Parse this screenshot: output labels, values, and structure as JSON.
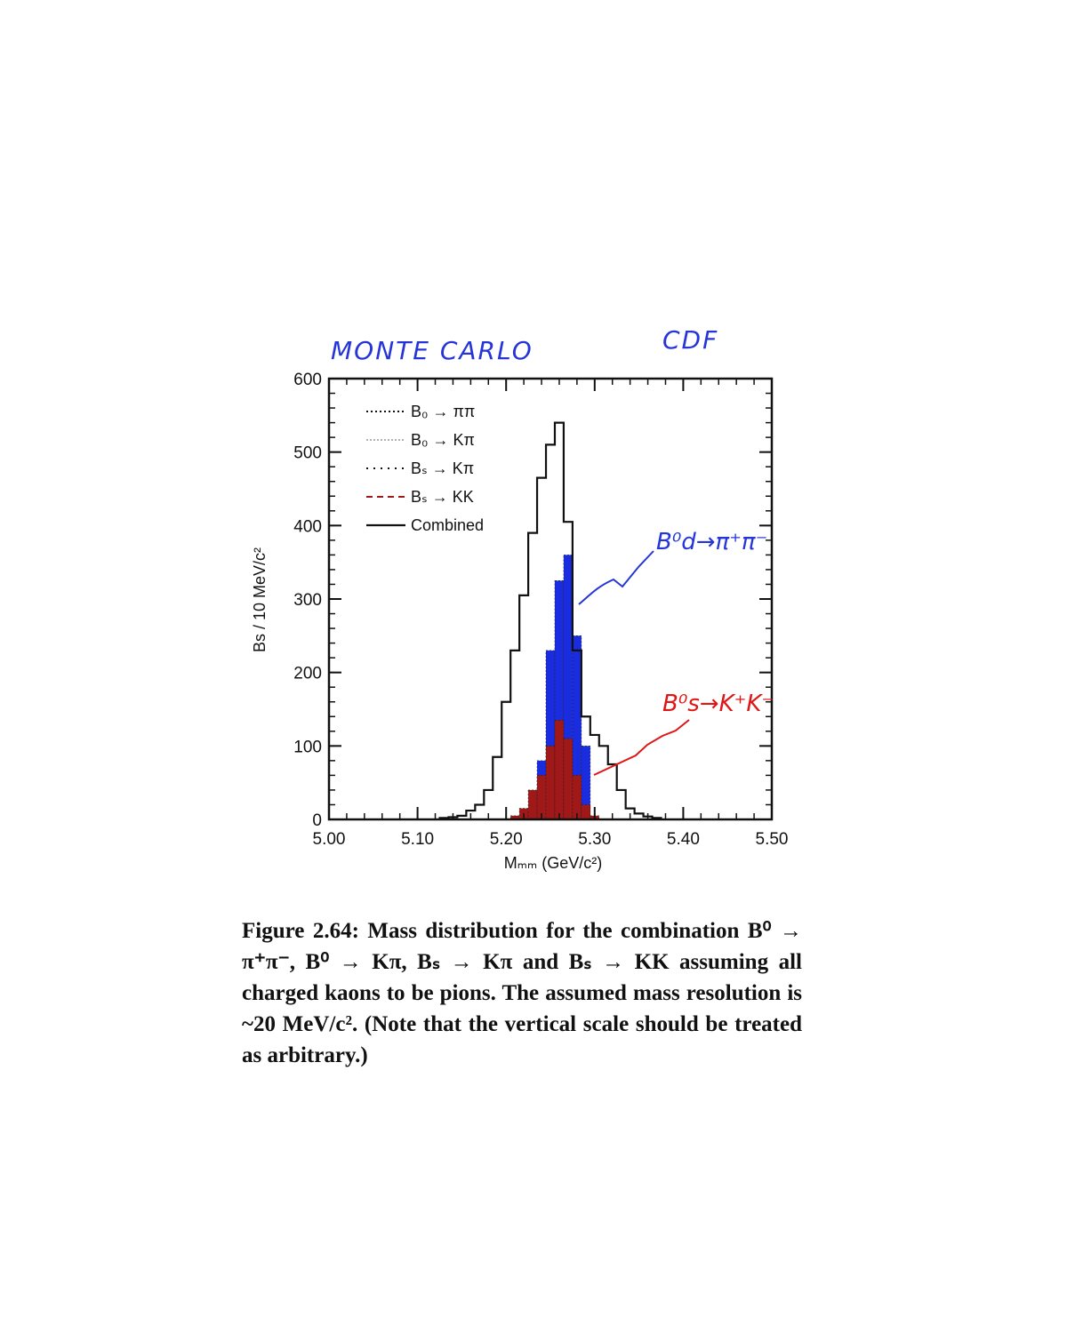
{
  "annotations": {
    "monte_carlo": "MONTE CARLO",
    "cdf": "CDF",
    "bd_label": "B⁰d→π⁺π⁻",
    "bs_label": "B⁰s→K⁺K⁻"
  },
  "colors": {
    "bd_pipi": "#1a2ce0",
    "bs_kk": "#a01818",
    "annotation_blue": "#2535d8",
    "annotation_red": "#e01515"
  },
  "chart_data": {
    "type": "bar",
    "xlabel": "Mₘₘ (GeV/c²)",
    "ylabel": "Bs / 10 MeV/c²",
    "xlim": [
      5.0,
      5.5
    ],
    "ylim": [
      0,
      600
    ],
    "xticks": [
      "5.00",
      "5.10",
      "5.20",
      "5.30",
      "5.40",
      "5.50"
    ],
    "yticks": [
      "0",
      "100",
      "200",
      "300",
      "400",
      "500",
      "600"
    ],
    "bin_width": 0.01,
    "legend": [
      {
        "name": "B₀ → ππ",
        "style": "dotted"
      },
      {
        "name": "B₀ → Kπ",
        "style": "dotted-light"
      },
      {
        "name": "Bₛ → Kπ",
        "style": "dotted-sparse"
      },
      {
        "name": "Bₛ → KK",
        "style": "dashed"
      },
      {
        "name": "Combined",
        "style": "solid"
      }
    ],
    "series": [
      {
        "name": "Combined",
        "x": [
          5.13,
          5.14,
          5.15,
          5.16,
          5.17,
          5.18,
          5.19,
          5.2,
          5.21,
          5.22,
          5.23,
          5.24,
          5.25,
          5.26,
          5.27,
          5.28,
          5.29,
          5.3,
          5.31,
          5.32,
          5.33,
          5.34,
          5.35,
          5.36,
          5.37
        ],
        "values": [
          2,
          3,
          5,
          12,
          20,
          40,
          85,
          160,
          230,
          305,
          390,
          465,
          510,
          540,
          405,
          230,
          140,
          115,
          100,
          75,
          40,
          15,
          8,
          4,
          2
        ]
      },
      {
        "name": "B₀ → ππ",
        "x": [
          5.23,
          5.24,
          5.25,
          5.26,
          5.27,
          5.28,
          5.29
        ],
        "values": [
          10,
          80,
          230,
          325,
          360,
          250,
          100
        ]
      },
      {
        "name": "Bₛ → KK",
        "x": [
          5.21,
          5.22,
          5.23,
          5.24,
          5.25,
          5.26,
          5.27,
          5.28,
          5.29,
          5.3
        ],
        "values": [
          5,
          15,
          40,
          60,
          100,
          135,
          110,
          60,
          20,
          5
        ]
      }
    ]
  },
  "caption": "Figure 2.64: Mass distribution for the combination B⁰ → π⁺π⁻, B⁰ → Kπ, Bₛ → Kπ and Bₛ → KK assuming all charged kaons to be pions. The assumed mass resolution is ~20 MeV/c². (Note that the vertical scale should be treated as arbitrary.)"
}
